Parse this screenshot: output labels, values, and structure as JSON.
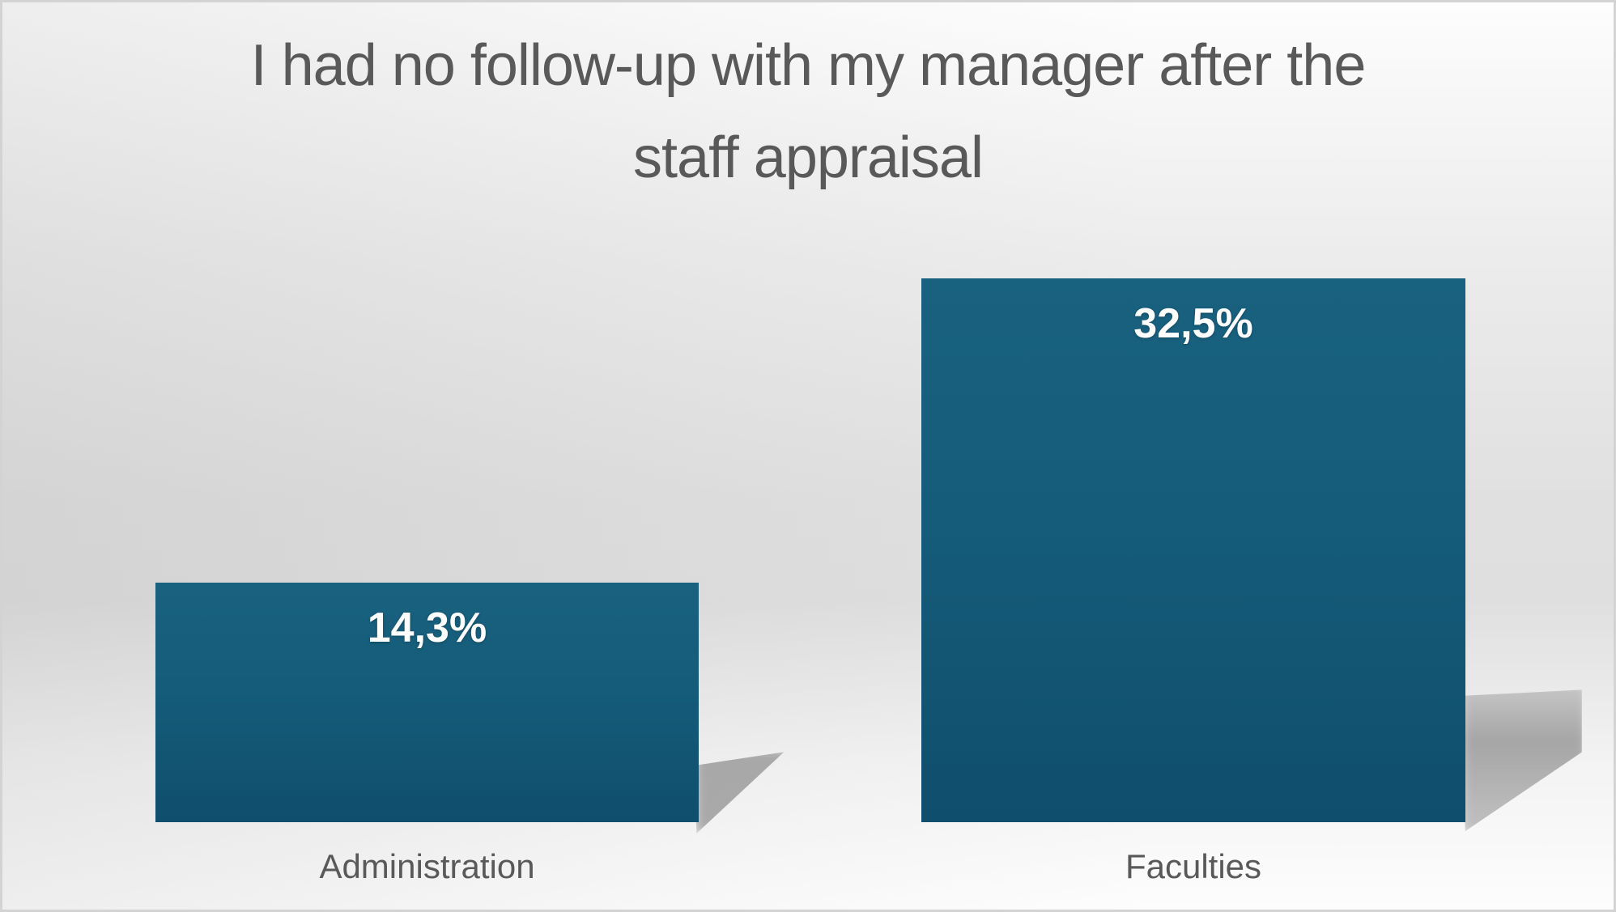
{
  "title": "I had no follow-up with my manager after the staff appraisal",
  "chart_data": {
    "type": "bar",
    "title": "I had no follow-up with my manager after the staff appraisal",
    "categories": [
      "Administration",
      "Faculties"
    ],
    "values": [
      14.3,
      32.5
    ],
    "value_labels": [
      "14,3%",
      "32,5%"
    ],
    "xlabel": "",
    "ylabel": "",
    "ylim": [
      0,
      32.5
    ],
    "grid": false,
    "legend": false,
    "axes_visible": false,
    "value_label_position": "inside-top",
    "decimal_separator": ","
  },
  "colors": {
    "bar_top": "#18617f",
    "bar_bottom": "#0f4e6c",
    "value_label": "#ffffff",
    "title_text": "#595959",
    "category_text": "#595959",
    "slide_border": "#d3d3d3",
    "background_mid": "#dfdfdf",
    "background_edge": "#fdfdfd",
    "shadow": "#787878"
  }
}
